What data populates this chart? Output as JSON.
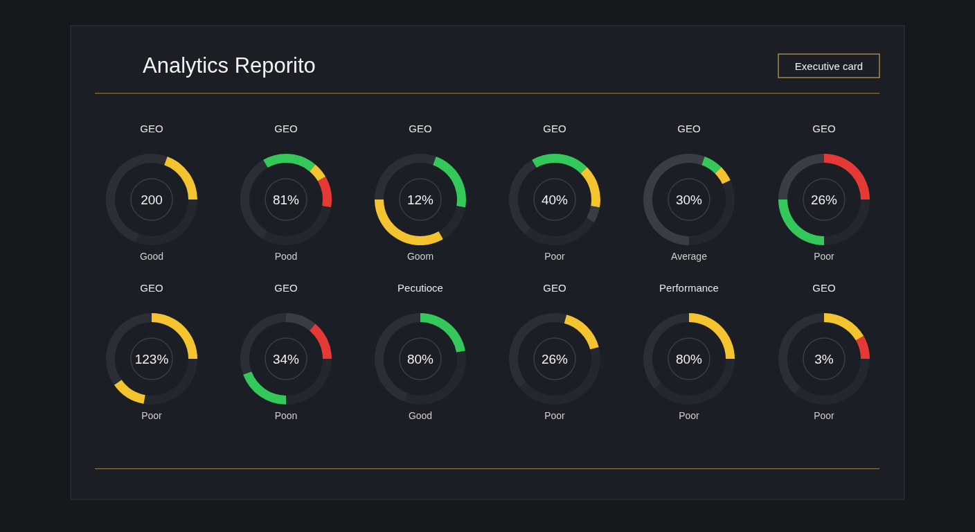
{
  "chart_data": [
    {
      "type": "other",
      "title": "Analytics Reporito",
      "annotations": [
        "Executive card"
      ]
    },
    {
      "type": "donut",
      "title": "GEO",
      "categories": [
        null,
        null,
        null,
        null
      ],
      "values": [
        5.6,
        19.4,
        30.6,
        44.4
      ],
      "colors": [
        "#2b2e34",
        "#f4c430",
        "#24272d",
        "#2b2e34"
      ],
      "annotations": [
        "200",
        "Good"
      ]
    },
    {
      "type": "donut",
      "title": "GEO",
      "categories": [
        null,
        null,
        null,
        null,
        null,
        null
      ],
      "values": [
        11.1,
        5.6,
        11.1,
        30.6,
        33.3,
        8.3
      ],
      "colors": [
        "#34c759",
        "#f4c430",
        "#e53935",
        "#24272d",
        "#2b2e34",
        "#34c759"
      ],
      "annotations": [
        "81%",
        "Pood"
      ]
    },
    {
      "type": "donut",
      "title": "GEO",
      "categories": [
        null,
        null,
        null,
        null,
        null
      ],
      "values": [
        5.6,
        22.2,
        13.9,
        33.3,
        25
      ],
      "colors": [
        "#2b2e34",
        "#34c759",
        "#24272d",
        "#f4c430",
        "#2b2e34"
      ],
      "annotations": [
        "12%",
        "Goom"
      ]
    },
    {
      "type": "donut",
      "title": "GEO",
      "categories": [
        null,
        null,
        null,
        null,
        null,
        null
      ],
      "values": [
        12.5,
        15.3,
        5.6,
        27.8,
        30.5,
        8.3
      ],
      "colors": [
        "#34c759",
        "#f4c430",
        "#3a3d43",
        "#24272d",
        "#2b2e34",
        "#34c759"
      ],
      "annotations": [
        "40%",
        "Poor"
      ]
    },
    {
      "type": "donut",
      "title": "GEO",
      "categories": [
        null,
        null,
        null,
        null,
        null
      ],
      "values": [
        5.6,
        6.9,
        5.6,
        31.9,
        50
      ],
      "colors": [
        "#3a3d43",
        "#34c759",
        "#f4c430",
        "#24272d",
        "#3a3d43"
      ],
      "annotations": [
        "30%",
        "Average"
      ]
    },
    {
      "type": "donut",
      "title": "GEO",
      "categories": [
        null,
        null,
        null,
        null
      ],
      "values": [
        25,
        25,
        25,
        25
      ],
      "colors": [
        "#e53935",
        "#24272d",
        "#34c759",
        "#3a3d43"
      ],
      "annotations": [
        "26%",
        "Poor"
      ]
    },
    {
      "type": "donut",
      "title": "GEO",
      "categories": [
        null,
        null,
        null,
        null
      ],
      "values": [
        25,
        27.8,
        12.5,
        34.7
      ],
      "colors": [
        "#f4c430",
        "#24272d",
        "#f4c430",
        "#2b2e34"
      ],
      "annotations": [
        "123%",
        "Poor"
      ]
    },
    {
      "type": "donut",
      "title": "GEO",
      "categories": [
        null,
        null,
        null,
        null,
        null
      ],
      "values": [
        11.1,
        13.9,
        25,
        19.4,
        30.6
      ],
      "colors": [
        "#3a3d43",
        "#e53935",
        "#24272d",
        "#34c759",
        "#2b2e34"
      ],
      "annotations": [
        "34%",
        "Poon"
      ]
    },
    {
      "type": "donut",
      "title": "Pecutioce",
      "categories": [
        null,
        null,
        null
      ],
      "values": [
        22.2,
        33.3,
        44.5
      ],
      "colors": [
        "#34c759",
        "#24272d",
        "#2b2e34"
      ],
      "annotations": [
        "80%",
        "Good"
      ]
    },
    {
      "type": "donut",
      "title": "GEO",
      "categories": [
        null,
        null,
        null,
        null
      ],
      "values": [
        4.2,
        16.7,
        43.1,
        36
      ],
      "colors": [
        "#2b2e34",
        "#f4c430",
        "#24272d",
        "#2b2e34"
      ],
      "annotations": [
        "26%",
        "Poor"
      ]
    },
    {
      "type": "donut",
      "title": "Performance",
      "categories": [
        null,
        null,
        null
      ],
      "values": [
        25,
        38.9,
        36.1
      ],
      "colors": [
        "#f4c430",
        "#24272d",
        "#2b2e34"
      ],
      "annotations": [
        "80%",
        "Poor"
      ]
    },
    {
      "type": "donut",
      "title": "GEO",
      "categories": [
        null,
        null,
        null,
        null
      ],
      "values": [
        16.7,
        8.3,
        36.1,
        38.9
      ],
      "colors": [
        "#f4c430",
        "#e53935",
        "#24272d",
        "#2b2e34"
      ],
      "annotations": [
        "3%",
        "Poor"
      ]
    }
  ]
}
